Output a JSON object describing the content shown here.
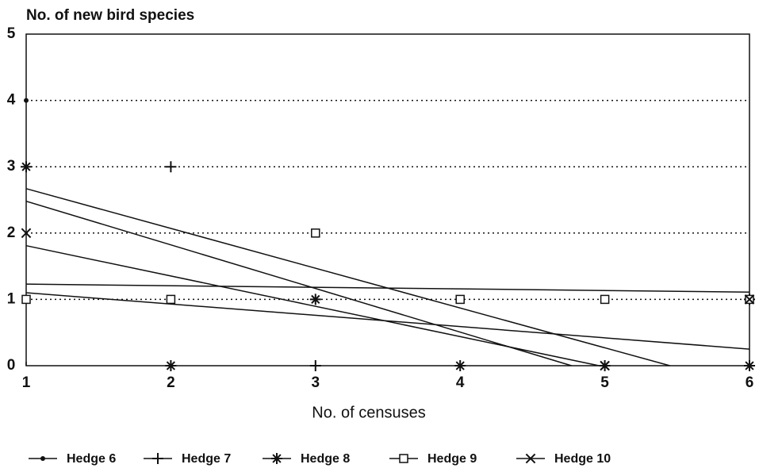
{
  "chart_data": {
    "type": "scatter",
    "y_label": "No. of new bird species",
    "x_label": "No. of censuses",
    "xlim": [
      1,
      6
    ],
    "xticks": [
      1,
      2,
      3,
      4,
      5,
      6
    ],
    "ylim": [
      0,
      5
    ],
    "yticks": [
      0,
      1,
      2,
      3,
      4,
      5
    ],
    "grid": true,
    "legend": "bottom",
    "color": "#111111",
    "series": [
      {
        "name": "Hedge 6",
        "marker": "dot",
        "x": [
          1,
          2
        ],
        "y": [
          4,
          1
        ],
        "trend_x": [
          1,
          4.77
        ],
        "trend_y": [
          2.48,
          0
        ]
      },
      {
        "name": "Hedge 7",
        "marker": "plus",
        "x": [
          2,
          3,
          6
        ],
        "y": [
          3,
          0,
          1
        ],
        "trend_x": [
          1,
          5.45
        ],
        "trend_y": [
          2.67,
          0
        ]
      },
      {
        "name": "Hedge 8",
        "marker": "asterisk",
        "x": [
          1,
          2,
          3,
          4,
          5,
          6
        ],
        "y": [
          3,
          0,
          1,
          0,
          0,
          0
        ],
        "trend_x": [
          1,
          4.96
        ],
        "trend_y": [
          1.81,
          0
        ]
      },
      {
        "name": "Hedge 9",
        "marker": "square",
        "x": [
          1,
          2,
          3,
          4,
          5,
          6
        ],
        "y": [
          1,
          1,
          2,
          1,
          1,
          1
        ],
        "trend_x": [
          1,
          6
        ],
        "trend_y": [
          1.23,
          1.11
        ]
      },
      {
        "name": "Hedge 10",
        "marker": "cross",
        "x": [
          1,
          5,
          6
        ],
        "y": [
          2,
          0,
          1
        ],
        "trend_x": [
          1,
          6
        ],
        "trend_y": [
          1.1,
          0.25
        ]
      }
    ]
  }
}
